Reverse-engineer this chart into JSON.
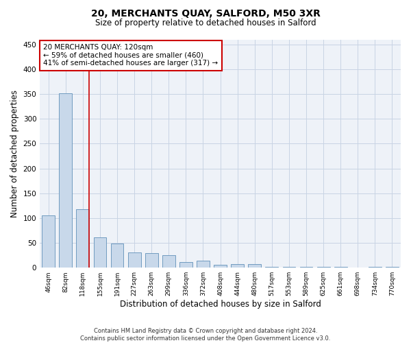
{
  "title": "20, MERCHANTS QUAY, SALFORD, M50 3XR",
  "subtitle": "Size of property relative to detached houses in Salford",
  "xlabel": "Distribution of detached houses by size in Salford",
  "ylabel": "Number of detached properties",
  "categories": [
    "46sqm",
    "82sqm",
    "118sqm",
    "155sqm",
    "191sqm",
    "227sqm",
    "263sqm",
    "299sqm",
    "336sqm",
    "372sqm",
    "408sqm",
    "444sqm",
    "480sqm",
    "517sqm",
    "553sqm",
    "589sqm",
    "625sqm",
    "661sqm",
    "698sqm",
    "734sqm",
    "770sqm"
  ],
  "values": [
    105,
    352,
    118,
    61,
    48,
    31,
    30,
    25,
    11,
    14,
    6,
    7,
    7,
    2,
    2,
    1,
    1,
    1,
    0,
    1,
    1
  ],
  "bar_color": "#c8d8ea",
  "bar_edge_color": "#6090b8",
  "red_line_x": 2,
  "annotation_lines": [
    "20 MERCHANTS QUAY: 120sqm",
    "← 59% of detached houses are smaller (460)",
    "41% of semi-detached houses are larger (317) →"
  ],
  "annotation_box_facecolor": "#ffffff",
  "annotation_box_edgecolor": "#cc0000",
  "red_line_color": "#cc0000",
  "grid_color": "#c8d4e4",
  "background_color": "#eef2f8",
  "footer_line1": "Contains HM Land Registry data © Crown copyright and database right 2024.",
  "footer_line2": "Contains public sector information licensed under the Open Government Licence v3.0.",
  "ylim": [
    0,
    460
  ],
  "yticks": [
    0,
    50,
    100,
    150,
    200,
    250,
    300,
    350,
    400,
    450
  ]
}
